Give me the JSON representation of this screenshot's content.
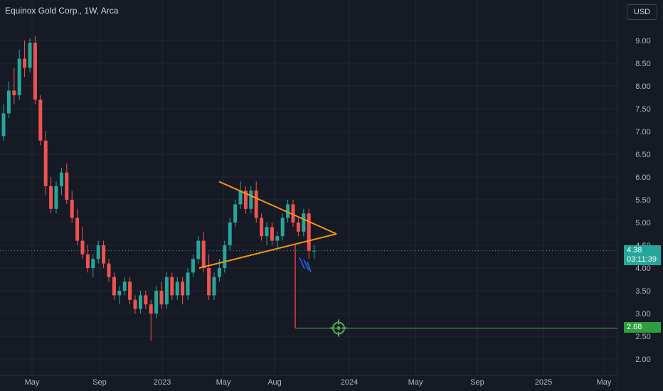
{
  "header": {
    "symbol_title": "Equinox Gold Corp., 1W, Arca",
    "currency": "USD"
  },
  "price_badge": {
    "price": "4.38",
    "countdown": "03:11:39"
  },
  "target_badge": {
    "price": "2.68"
  },
  "colors": {
    "background": "#161a25",
    "grid": "#232632",
    "axis_text": "#b2b5be",
    "up": "#26a69a",
    "down": "#ef5350",
    "pattern": "#f7931a",
    "target": "#4caf50",
    "projection": "#f23645",
    "arrows": "#2962ff"
  },
  "chart_data": {
    "type": "candlestick",
    "title": "Equinox Gold Corp., 1W, Arca",
    "y_axis": {
      "ticks": [
        "9.00",
        "8.50",
        "8.00",
        "7.50",
        "7.00",
        "6.50",
        "6.00",
        "5.50",
        "5.00",
        "4.50",
        "4.00",
        "3.50",
        "3.00",
        "2.50",
        "2.00"
      ],
      "range": [
        1.85,
        9.35
      ]
    },
    "x_axis": {
      "ticks": [
        "May",
        "Sep",
        "2023",
        "May",
        "Aug",
        "2024",
        "May",
        "Sep",
        "2025",
        "May"
      ]
    },
    "current_price": 4.38,
    "target_price": 2.68,
    "triangle_pattern": {
      "upper_line": [
        {
          "week": 37,
          "price": 5.9
        },
        {
          "week": 59,
          "price": 4.75
        }
      ],
      "lower_line": [
        {
          "week": 11,
          "price": 4.0
        },
        {
          "week": 59,
          "price": 4.75
        }
      ]
    },
    "projection": {
      "from_week": 40,
      "from_price": 4.5,
      "to_price": 2.68
    },
    "candles": [
      [
        6.9,
        7.6,
        6.8,
        7.4
      ],
      [
        7.4,
        8.1,
        7.3,
        7.9
      ],
      [
        7.9,
        8.4,
        7.6,
        7.8
      ],
      [
        7.8,
        8.8,
        7.7,
        8.6
      ],
      [
        8.6,
        9.0,
        8.2,
        8.4
      ],
      [
        8.4,
        9.05,
        8.3,
        8.95
      ],
      [
        8.95,
        9.1,
        7.6,
        7.7
      ],
      [
        7.7,
        7.8,
        6.7,
        6.8
      ],
      [
        6.8,
        7.0,
        5.6,
        5.8
      ],
      [
        5.8,
        6.0,
        5.2,
        5.3
      ],
      [
        5.3,
        5.9,
        5.2,
        5.8
      ],
      [
        5.8,
        6.2,
        5.6,
        6.1
      ],
      [
        6.1,
        6.3,
        5.4,
        5.5
      ],
      [
        5.5,
        5.7,
        5.0,
        5.1
      ],
      [
        5.1,
        5.3,
        4.5,
        4.6
      ],
      [
        4.6,
        4.9,
        4.2,
        4.3
      ],
      [
        4.3,
        4.5,
        3.9,
        4.0
      ],
      [
        4.0,
        4.3,
        3.8,
        4.2
      ],
      [
        4.2,
        4.6,
        4.1,
        4.5
      ],
      [
        4.5,
        4.6,
        4.0,
        4.1
      ],
      [
        4.1,
        4.2,
        3.7,
        3.8
      ],
      [
        3.8,
        3.9,
        3.3,
        3.4
      ],
      [
        3.4,
        3.6,
        3.2,
        3.5
      ],
      [
        3.5,
        3.8,
        3.4,
        3.7
      ],
      [
        3.7,
        3.8,
        3.2,
        3.3
      ],
      [
        3.3,
        3.4,
        3.0,
        3.1
      ],
      [
        3.1,
        3.5,
        3.0,
        3.4
      ],
      [
        3.4,
        3.5,
        3.1,
        3.2
      ],
      [
        3.2,
        3.3,
        2.4,
        3.0
      ],
      [
        3.0,
        3.6,
        2.9,
        3.5
      ],
      [
        3.5,
        3.7,
        3.1,
        3.2
      ],
      [
        3.2,
        3.9,
        3.1,
        3.8
      ],
      [
        3.8,
        3.9,
        3.3,
        3.4
      ],
      [
        3.4,
        3.8,
        3.3,
        3.7
      ],
      [
        3.7,
        3.8,
        3.2,
        3.4
      ],
      [
        3.4,
        4.0,
        3.3,
        3.9
      ],
      [
        3.9,
        4.3,
        3.8,
        4.2
      ],
      [
        4.2,
        4.7,
        4.1,
        4.6
      ],
      [
        4.6,
        4.8,
        3.9,
        4.0
      ],
      [
        4.0,
        4.3,
        3.3,
        3.4
      ],
      [
        3.4,
        3.9,
        3.3,
        3.8
      ],
      [
        3.8,
        4.2,
        3.7,
        4.0
      ],
      [
        4.0,
        4.6,
        3.9,
        4.5
      ],
      [
        4.5,
        5.1,
        4.4,
        5.0
      ],
      [
        5.0,
        5.5,
        4.9,
        5.4
      ],
      [
        5.4,
        5.9,
        5.3,
        5.7
      ],
      [
        5.7,
        5.8,
        5.2,
        5.3
      ],
      [
        5.3,
        5.8,
        5.2,
        5.7
      ],
      [
        5.7,
        5.9,
        5.0,
        5.1
      ],
      [
        5.1,
        5.2,
        4.6,
        4.7
      ],
      [
        4.7,
        5.0,
        4.5,
        4.9
      ],
      [
        4.9,
        5.0,
        4.5,
        4.6
      ],
      [
        4.6,
        4.8,
        4.4,
        4.7
      ],
      [
        4.7,
        5.2,
        4.6,
        5.1
      ],
      [
        5.1,
        5.5,
        5.0,
        5.4
      ],
      [
        5.4,
        5.5,
        4.9,
        5.0
      ],
      [
        5.0,
        5.1,
        4.7,
        4.8
      ],
      [
        4.8,
        5.3,
        4.7,
        5.2
      ],
      [
        5.2,
        5.3,
        4.2,
        4.38
      ],
      [
        4.38,
        4.5,
        4.2,
        4.38
      ]
    ]
  }
}
